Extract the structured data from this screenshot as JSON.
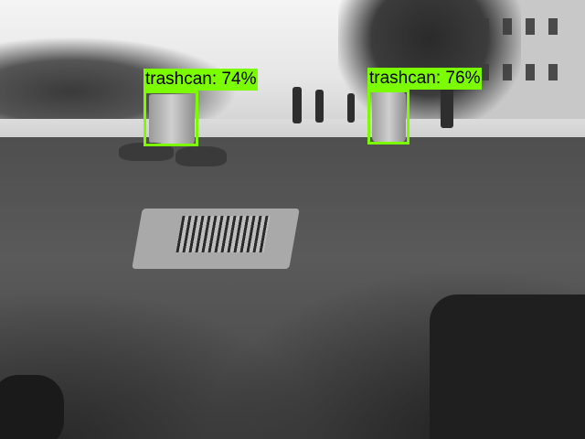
{
  "detections": [
    {
      "label": "trashcan: 74%"
    },
    {
      "label": "trashcan: 76%"
    }
  ],
  "colors": {
    "box": "#7CFC00",
    "label_text": "#000000"
  }
}
